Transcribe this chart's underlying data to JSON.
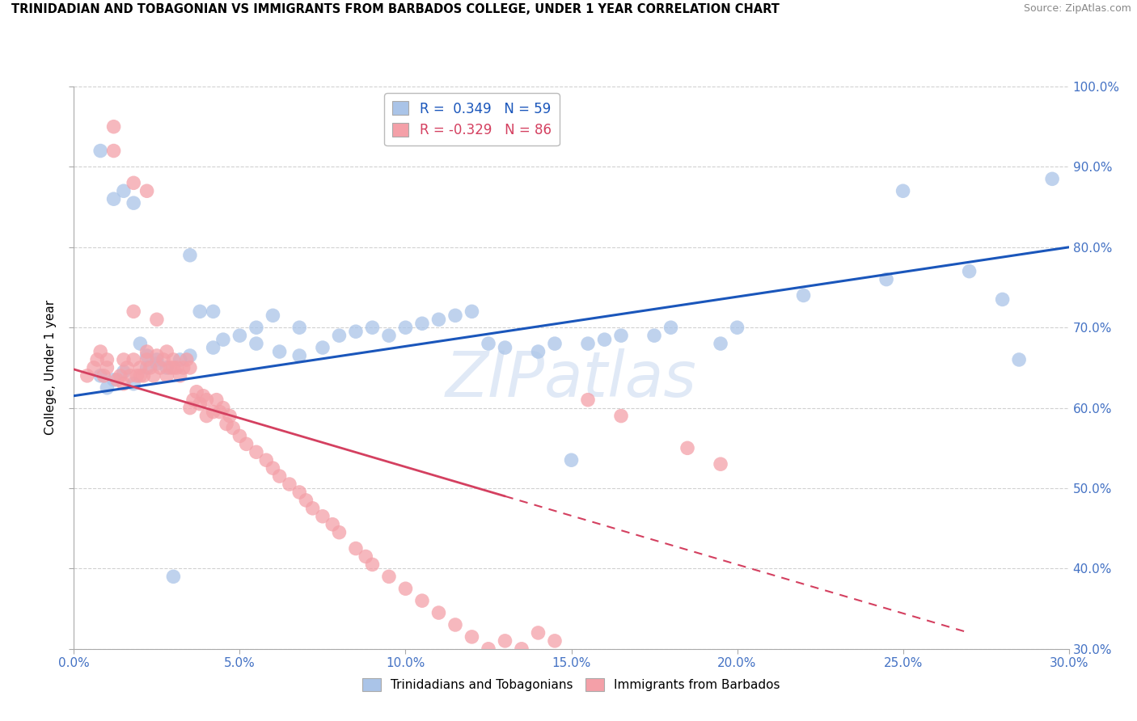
{
  "title": "TRINIDADIAN AND TOBAGONIAN VS IMMIGRANTS FROM BARBADOS COLLEGE, UNDER 1 YEAR CORRELATION CHART",
  "source": "Source: ZipAtlas.com",
  "ylabel": "College, Under 1 year",
  "xmin": 0.0,
  "xmax": 0.3,
  "ymin": 0.3,
  "ymax": 1.0,
  "r_blue": 0.349,
  "n_blue": 59,
  "r_pink": -0.329,
  "n_pink": 86,
  "blue_fill": "#aac4e8",
  "pink_fill": "#f4a0a8",
  "blue_line_color": "#1a56bb",
  "pink_line_color": "#d44060",
  "legend_label_blue": "Trinidadians and Tobagonians",
  "legend_label_pink": "Immigrants from Barbados",
  "watermark": "ZIPatlas",
  "blue_x": [
    0.008,
    0.01,
    0.012,
    0.015,
    0.018,
    0.022,
    0.025,
    0.015,
    0.018,
    0.022,
    0.025,
    0.028,
    0.032,
    0.035,
    0.038,
    0.042,
    0.045,
    0.05,
    0.055,
    0.06,
    0.062,
    0.068,
    0.075,
    0.08,
    0.085,
    0.09,
    0.035,
    0.042,
    0.055,
    0.068,
    0.095,
    0.1,
    0.105,
    0.11,
    0.115,
    0.12,
    0.125,
    0.13,
    0.14,
    0.145,
    0.15,
    0.155,
    0.16,
    0.165,
    0.175,
    0.18,
    0.195,
    0.2,
    0.22,
    0.245,
    0.25,
    0.27,
    0.28,
    0.285,
    0.295,
    0.008,
    0.012,
    0.02,
    0.03
  ],
  "blue_y": [
    0.64,
    0.625,
    0.635,
    0.645,
    0.63,
    0.65,
    0.66,
    0.87,
    0.855,
    0.665,
    0.655,
    0.65,
    0.66,
    0.665,
    0.72,
    0.675,
    0.685,
    0.69,
    0.7,
    0.715,
    0.67,
    0.7,
    0.675,
    0.69,
    0.695,
    0.7,
    0.79,
    0.72,
    0.68,
    0.665,
    0.69,
    0.7,
    0.705,
    0.71,
    0.715,
    0.72,
    0.68,
    0.675,
    0.67,
    0.68,
    0.535,
    0.68,
    0.685,
    0.69,
    0.69,
    0.7,
    0.68,
    0.7,
    0.74,
    0.76,
    0.87,
    0.77,
    0.735,
    0.66,
    0.885,
    0.92,
    0.86,
    0.68,
    0.39
  ],
  "pink_x": [
    0.004,
    0.006,
    0.007,
    0.008,
    0.009,
    0.01,
    0.01,
    0.012,
    0.012,
    0.013,
    0.014,
    0.015,
    0.015,
    0.016,
    0.017,
    0.018,
    0.018,
    0.019,
    0.02,
    0.02,
    0.021,
    0.022,
    0.022,
    0.023,
    0.024,
    0.025,
    0.025,
    0.026,
    0.027,
    0.028,
    0.028,
    0.029,
    0.03,
    0.03,
    0.031,
    0.032,
    0.033,
    0.034,
    0.035,
    0.035,
    0.036,
    0.037,
    0.038,
    0.039,
    0.04,
    0.04,
    0.042,
    0.043,
    0.044,
    0.045,
    0.046,
    0.047,
    0.048,
    0.05,
    0.052,
    0.055,
    0.058,
    0.06,
    0.062,
    0.065,
    0.068,
    0.07,
    0.072,
    0.075,
    0.078,
    0.08,
    0.085,
    0.088,
    0.09,
    0.095,
    0.1,
    0.105,
    0.11,
    0.115,
    0.12,
    0.125,
    0.13,
    0.135,
    0.14,
    0.145,
    0.155,
    0.165,
    0.185,
    0.195,
    0.018,
    0.022
  ],
  "pink_y": [
    0.64,
    0.65,
    0.66,
    0.67,
    0.64,
    0.65,
    0.66,
    0.95,
    0.92,
    0.635,
    0.64,
    0.66,
    0.63,
    0.65,
    0.64,
    0.66,
    0.72,
    0.64,
    0.65,
    0.64,
    0.64,
    0.66,
    0.67,
    0.65,
    0.64,
    0.665,
    0.71,
    0.65,
    0.66,
    0.64,
    0.67,
    0.65,
    0.65,
    0.66,
    0.65,
    0.64,
    0.65,
    0.66,
    0.6,
    0.65,
    0.61,
    0.62,
    0.605,
    0.615,
    0.59,
    0.61,
    0.595,
    0.61,
    0.595,
    0.6,
    0.58,
    0.59,
    0.575,
    0.565,
    0.555,
    0.545,
    0.535,
    0.525,
    0.515,
    0.505,
    0.495,
    0.485,
    0.475,
    0.465,
    0.455,
    0.445,
    0.425,
    0.415,
    0.405,
    0.39,
    0.375,
    0.36,
    0.345,
    0.33,
    0.315,
    0.3,
    0.31,
    0.3,
    0.32,
    0.31,
    0.61,
    0.59,
    0.55,
    0.53,
    0.88,
    0.87
  ],
  "blue_line_x0": 0.0,
  "blue_line_x1": 0.3,
  "blue_line_y0": 0.615,
  "blue_line_y1": 0.8,
  "pink_line_x0": 0.0,
  "pink_line_x1": 0.27,
  "pink_line_y0": 0.648,
  "pink_line_y1": 0.32
}
